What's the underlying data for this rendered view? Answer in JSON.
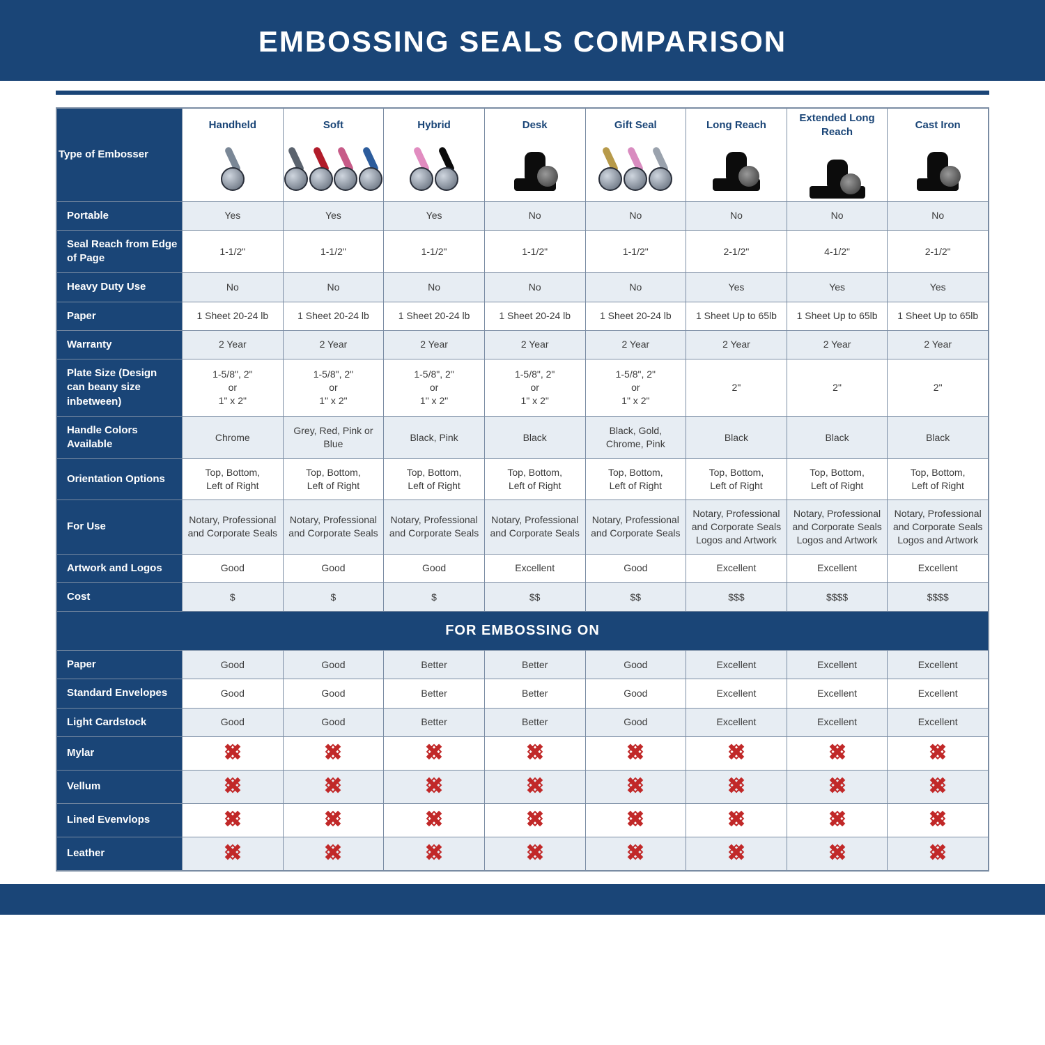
{
  "title": "EMBOSSING SEALS COMPARISON",
  "section_band": "FOR EMBOSSING ON",
  "colors": {
    "brand": "#1a4577",
    "row_alt": "#e7edf3",
    "border": "#7a8ca3",
    "x_red": "#c12828",
    "text": "#3a3a3a"
  },
  "columns": [
    {
      "label": "Handheld",
      "icon": "handheld",
      "arm_colors": [
        "#7a8796"
      ]
    },
    {
      "label": "Soft",
      "icon": "soft",
      "arm_colors": [
        "#5b636e",
        "#b11c2a",
        "#c75b88",
        "#2c5c9c"
      ]
    },
    {
      "label": "Hybrid",
      "icon": "hybrid",
      "arm_colors": [
        "#e18cc0",
        "#0b0b0b"
      ]
    },
    {
      "label": "Desk",
      "icon": "desk",
      "arm_colors": [
        "#0b0b0b"
      ]
    },
    {
      "label": "Gift Seal",
      "icon": "gift",
      "arm_colors": [
        "#b79a4a",
        "#d98cc0",
        "#9aa2ad"
      ]
    },
    {
      "label": "Long Reach",
      "icon": "longreach",
      "arm_colors": [
        "#0b0b0b"
      ]
    },
    {
      "label": "Extended Long Reach",
      "icon": "extlong",
      "arm_colors": [
        "#0b0b0b"
      ]
    },
    {
      "label": "Cast Iron",
      "icon": "castiron",
      "arm_colors": [
        "#0b0b0b"
      ]
    }
  ],
  "row_header_label": "Type of Embosser",
  "rows": [
    {
      "label": "Portable",
      "alt": true,
      "cells": [
        "Yes",
        "Yes",
        "Yes",
        "No",
        "No",
        "No",
        "No",
        "No"
      ]
    },
    {
      "label": "Seal Reach from Edge of Page",
      "alt": false,
      "cells": [
        "1-1/2\"",
        "1-1/2\"",
        "1-1/2\"",
        "1-1/2\"",
        "1-1/2\"",
        "2-1/2\"",
        "4-1/2\"",
        "2-1/2\""
      ]
    },
    {
      "label": "Heavy Duty Use",
      "alt": true,
      "cells": [
        "No",
        "No",
        "No",
        "No",
        "No",
        "Yes",
        "Yes",
        "Yes"
      ]
    },
    {
      "label": "Paper",
      "alt": false,
      "cells": [
        "1 Sheet 20-24 lb",
        "1 Sheet 20-24 lb",
        "1 Sheet 20-24 lb",
        "1 Sheet 20-24 lb",
        "1 Sheet 20-24 lb",
        "1 Sheet Up to 65lb",
        "1 Sheet Up to 65lb",
        "1 Sheet Up to 65lb"
      ]
    },
    {
      "label": "Warranty",
      "alt": true,
      "cells": [
        "2 Year",
        "2 Year",
        "2 Year",
        "2 Year",
        "2 Year",
        "2 Year",
        "2 Year",
        "2 Year"
      ]
    },
    {
      "label": "Plate Size (Design can beany size inbetween)",
      "alt": false,
      "cells": [
        "1-5/8\", 2\"\nor\n1\" x 2\"",
        "1-5/8\", 2\"\nor\n1\" x 2\"",
        "1-5/8\", 2\"\nor\n1\" x 2\"",
        "1-5/8\", 2\"\nor\n1\" x 2\"",
        "1-5/8\", 2\"\nor\n1\" x 2\"",
        "2\"",
        "2\"",
        "2\""
      ]
    },
    {
      "label": "Handle Colors Available",
      "alt": true,
      "cells": [
        "Chrome",
        "Grey, Red, Pink or Blue",
        "Black, Pink",
        "Black",
        "Black, Gold, Chrome, Pink",
        "Black",
        "Black",
        "Black"
      ]
    },
    {
      "label": "Orientation Options",
      "alt": false,
      "cells": [
        "Top, Bottom,\nLeft of Right",
        "Top, Bottom,\nLeft of Right",
        "Top, Bottom,\nLeft of Right",
        "Top, Bottom,\nLeft of Right",
        "Top, Bottom,\nLeft of Right",
        "Top, Bottom,\nLeft of Right",
        "Top, Bottom,\nLeft of Right",
        "Top, Bottom,\nLeft of Right"
      ]
    },
    {
      "label": "For Use",
      "alt": true,
      "cells": [
        "Notary, Professional and Corporate Seals",
        "Notary, Professional and Corporate Seals",
        "Notary, Professional and Corporate Seals",
        "Notary, Professional and Corporate Seals",
        "Notary, Professional and Corporate Seals",
        "Notary, Professional and Corporate Seals Logos and Artwork",
        "Notary, Professional and Corporate Seals Logos and Artwork",
        "Notary, Professional and Corporate Seals Logos and Artwork"
      ]
    },
    {
      "label": "Artwork and Logos",
      "alt": false,
      "cells": [
        "Good",
        "Good",
        "Good",
        "Excellent",
        "Good",
        "Excellent",
        "Excellent",
        "Excellent"
      ]
    },
    {
      "label": "Cost",
      "alt": true,
      "cells": [
        "$",
        "$",
        "$",
        "$$",
        "$$",
        "$$$",
        "$$$$",
        "$$$$"
      ]
    }
  ],
  "emboss_rows": [
    {
      "label": "Paper",
      "alt": true,
      "cells": [
        "Good",
        "Good",
        "Better",
        "Better",
        "Good",
        "Excellent",
        "Excellent",
        "Excellent"
      ]
    },
    {
      "label": "Standard Envelopes",
      "alt": false,
      "cells": [
        "Good",
        "Good",
        "Better",
        "Better",
        "Good",
        "Excellent",
        "Excellent",
        "Excellent"
      ]
    },
    {
      "label": "Light Cardstock",
      "alt": true,
      "cells": [
        "Good",
        "Good",
        "Better",
        "Better",
        "Good",
        "Excellent",
        "Excellent",
        "Excellent"
      ]
    },
    {
      "label": "Mylar",
      "alt": false,
      "cells": [
        "X",
        "X",
        "X",
        "X",
        "X",
        "X",
        "X",
        "X"
      ]
    },
    {
      "label": "Vellum",
      "alt": true,
      "cells": [
        "X",
        "X",
        "X",
        "X",
        "X",
        "X",
        "X",
        "X"
      ]
    },
    {
      "label": "Lined Evenvlops",
      "alt": false,
      "cells": [
        "X",
        "X",
        "X",
        "X",
        "X",
        "X",
        "X",
        "X"
      ]
    },
    {
      "label": "Leather",
      "alt": true,
      "cells": [
        "X",
        "X",
        "X",
        "X",
        "X",
        "X",
        "X",
        "X"
      ]
    }
  ]
}
